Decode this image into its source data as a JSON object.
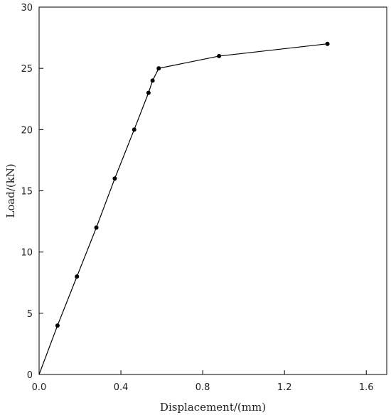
{
  "chart_data": {
    "type": "line",
    "title": "",
    "xlabel": "Displacement/(mm)",
    "ylabel": "Load/(kN)",
    "xlim": [
      0,
      1.7
    ],
    "ylim": [
      0,
      30
    ],
    "xticks": [
      0.0,
      0.4,
      0.8,
      1.2,
      1.6
    ],
    "xtick_labels": [
      "0.0",
      "0.4",
      "0.8",
      "1.2",
      "1.6"
    ],
    "yticks": [
      0,
      5,
      10,
      15,
      20,
      25,
      30
    ],
    "ytick_labels": [
      "0",
      "5",
      "10",
      "15",
      "20",
      "25",
      "30"
    ],
    "grid": false,
    "legend": "none",
    "colors": {
      "line": "#000000",
      "marker": "#000000",
      "axis": "#000000"
    },
    "series": [
      {
        "x": [
          0.0,
          0.09,
          0.185,
          0.28,
          0.37,
          0.465,
          0.535,
          0.555,
          0.585,
          0.88,
          1.41
        ],
        "y": [
          0,
          4,
          8,
          12,
          16,
          20,
          23,
          24,
          25,
          26,
          27
        ]
      }
    ]
  }
}
